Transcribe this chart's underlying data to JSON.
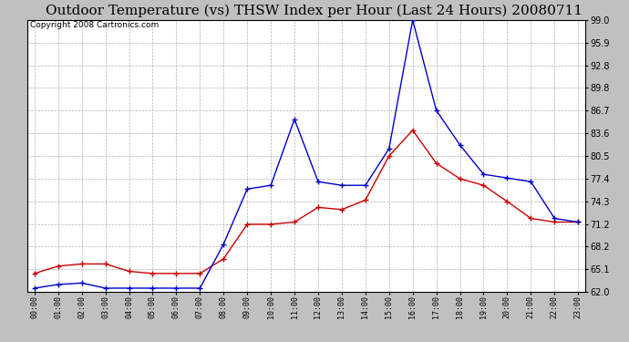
{
  "title": "Outdoor Temperature (vs) THSW Index per Hour (Last 24 Hours) 20080711",
  "copyright": "Copyright 2008 Cartronics.com",
  "hours": [
    "00:00",
    "01:00",
    "02:00",
    "03:00",
    "04:00",
    "05:00",
    "06:00",
    "07:00",
    "08:00",
    "09:00",
    "10:00",
    "11:00",
    "12:00",
    "13:00",
    "14:00",
    "15:00",
    "16:00",
    "17:00",
    "18:00",
    "19:00",
    "20:00",
    "21:00",
    "22:00",
    "23:00"
  ],
  "red_temp": [
    64.5,
    65.5,
    65.8,
    65.8,
    64.8,
    64.5,
    64.5,
    64.5,
    66.5,
    71.2,
    71.2,
    71.5,
    73.5,
    73.2,
    74.5,
    80.5,
    84.0,
    79.5,
    77.4,
    76.5,
    74.3,
    72.0,
    71.5,
    71.5
  ],
  "blue_thsw": [
    62.5,
    63.0,
    63.2,
    62.5,
    62.5,
    62.5,
    62.5,
    62.5,
    68.5,
    76.0,
    76.5,
    85.5,
    77.0,
    76.5,
    76.5,
    81.5,
    99.0,
    86.7,
    82.0,
    78.0,
    77.5,
    77.0,
    72.0,
    71.5
  ],
  "ylim_min": 62.0,
  "ylim_max": 99.0,
  "yticks": [
    62.0,
    65.1,
    68.2,
    71.2,
    74.3,
    77.4,
    80.5,
    83.6,
    86.7,
    89.8,
    92.8,
    95.9,
    99.0
  ],
  "red_color": "#cc0000",
  "blue_color": "#0000cc",
  "grid_color": "#aaaaaa",
  "bg_color": "#ffffff",
  "plot_bg": "#ffffff",
  "outer_bg": "#c0c0c0",
  "title_fontsize": 11,
  "copyright_fontsize": 6.5
}
